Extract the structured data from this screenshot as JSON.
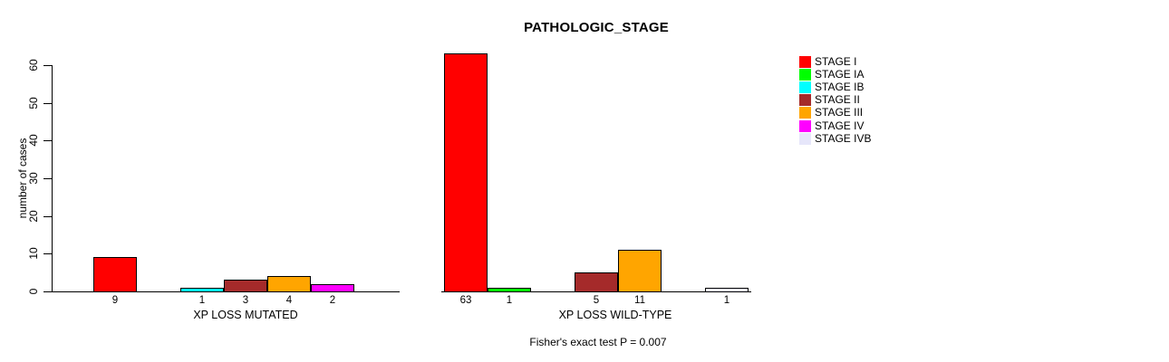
{
  "chart_data": {
    "type": "bar",
    "title": "PATHOLOGIC_STAGE",
    "ylabel": "number of cases",
    "xlabel": "",
    "ylim": [
      0,
      60
    ],
    "yticks": [
      0,
      10,
      20,
      30,
      40,
      50,
      60
    ],
    "grid": false,
    "legend_position": "right",
    "categories": [
      "STAGE I",
      "STAGE IA",
      "STAGE IB",
      "STAGE II",
      "STAGE III",
      "STAGE IV",
      "STAGE IVB"
    ],
    "colors": [
      "#FF0000",
      "#00FF00",
      "#00FFFF",
      "#A52A2A",
      "#FFA500",
      "#FF00FF",
      "#E6E6FA"
    ],
    "groups": [
      {
        "label": "XP LOSS MUTATED",
        "values": [
          9,
          0,
          1,
          3,
          4,
          2,
          0
        ]
      },
      {
        "label": "XP LOSS WILD-TYPE",
        "values": [
          63,
          1,
          0,
          5,
          11,
          0,
          1
        ]
      }
    ],
    "shown_value_labels": {
      "XP LOSS MUTATED": [
        9,
        1,
        3,
        4,
        2
      ],
      "XP LOSS WILD-TYPE": [
        63,
        1,
        5,
        11,
        1
      ]
    },
    "annotation": "Fisher's exact test P = 0.007"
  }
}
